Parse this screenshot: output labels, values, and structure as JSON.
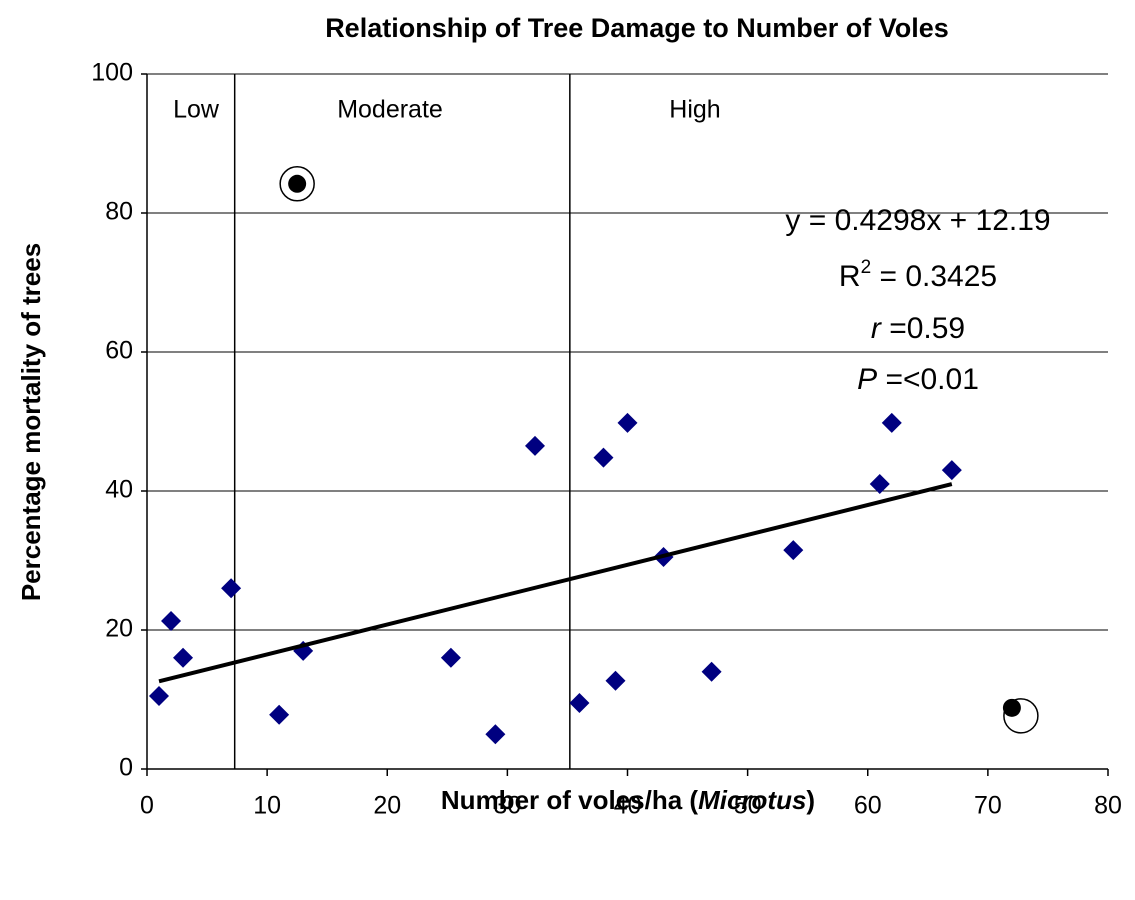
{
  "chart_data": {
    "type": "scatter",
    "title": "Relationship of Tree Damage to Number of Voles",
    "xlabel": {
      "prefix": "Number of voles/ha (",
      "italic": "Microtus",
      "suffix": ")"
    },
    "ylabel": "Percentage mortality of trees",
    "xlim": [
      0,
      80
    ],
    "xticks": [
      0,
      10,
      20,
      30,
      40,
      50,
      60,
      70,
      80
    ],
    "ylim": [
      0,
      100
    ],
    "yticks": [
      0,
      20,
      40,
      60,
      80,
      100
    ],
    "grid": true,
    "regions": [
      "Low",
      "Moderate",
      "High"
    ],
    "dividers": [
      7.3,
      35.2
    ],
    "series": [
      {
        "name": "Data",
        "color": "#000080",
        "marker": "diamond",
        "x": [
          1,
          2,
          3,
          7,
          11,
          13,
          25.3,
          29,
          32.3,
          36,
          38,
          39,
          40,
          43,
          47,
          53.8,
          61,
          62,
          67
        ],
        "values": [
          10.5,
          21.3,
          16,
          26,
          7.8,
          17,
          16,
          5,
          46.5,
          9.5,
          44.8,
          12.7,
          49.8,
          30.5,
          14,
          31.5,
          41,
          49.8,
          43
        ]
      },
      {
        "name": "Outliers",
        "color": "#000000",
        "marker": "circled",
        "x": [
          12.5,
          72
        ],
        "values": [
          84.2,
          8.8
        ]
      },
      {
        "name": "Trendline",
        "color": "#000000",
        "marker": "line",
        "x": [
          1,
          67
        ],
        "values": [
          12.62,
          40.99
        ]
      }
    ],
    "annotations": [
      [
        {
          "text": "y = 0.4298x + 12.19"
        }
      ],
      [
        {
          "text": "R"
        },
        {
          "text": "2",
          "style": "sup"
        },
        {
          "text": " = 0.3425"
        }
      ],
      [
        {
          "text": "r",
          "style": "italic"
        },
        {
          "text": " =0.59"
        }
      ],
      [
        {
          "text": "P",
          "style": "italic"
        },
        {
          "text": " =<0.01"
        }
      ]
    ]
  }
}
